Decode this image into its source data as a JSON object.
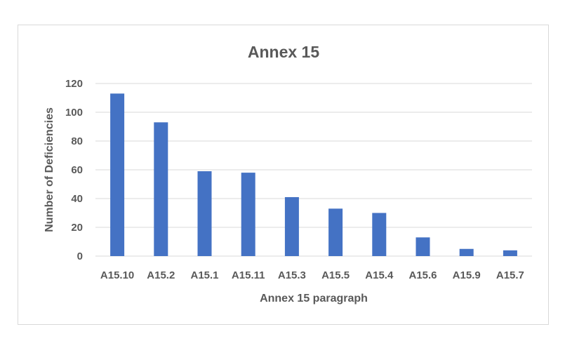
{
  "chart_data": {
    "type": "bar",
    "title": "Annex 15",
    "xlabel": "Annex 15 paragraph",
    "ylabel": "Number of Deficiencies",
    "categories": [
      "A15.10",
      "A15.2",
      "A15.1",
      "A15.11",
      "A15.3",
      "A15.5",
      "A15.4",
      "A15.6",
      "A15.9",
      "A15.7"
    ],
    "values": [
      113,
      93,
      59,
      58,
      41,
      33,
      30,
      13,
      5,
      4
    ],
    "ylim": [
      0,
      120
    ],
    "yticks": [
      0,
      20,
      40,
      60,
      80,
      100,
      120
    ],
    "grid": true,
    "legend": "none",
    "bar_color": "#4472c4",
    "grid_color": "#d9d9d9"
  }
}
